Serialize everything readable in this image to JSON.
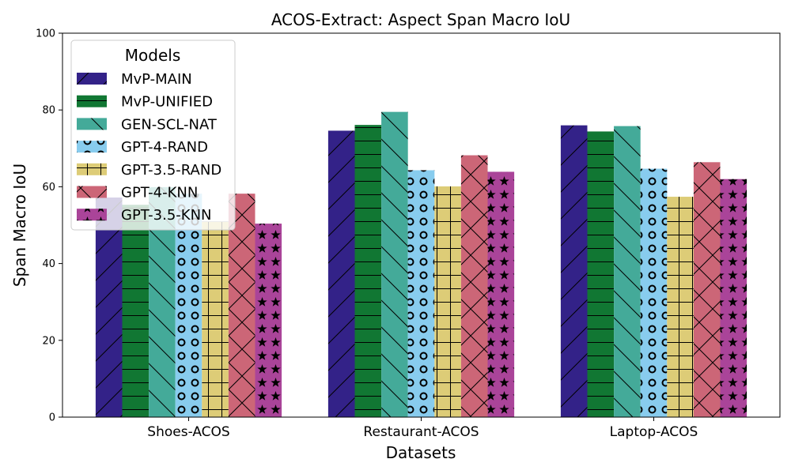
{
  "chart_data": {
    "type": "bar",
    "title": "ACOS-Extract: Aspect Span Macro IoU",
    "xlabel": "Datasets",
    "ylabel": "Span Macro IoU",
    "ylim": [
      0,
      100
    ],
    "yticks": [
      0,
      20,
      40,
      60,
      80,
      100
    ],
    "categories": [
      "Shoes-ACOS",
      "Restaurant-ACOS",
      "Laptop-ACOS"
    ],
    "legend": {
      "title": "Models",
      "placement": "top-left"
    },
    "grid": false,
    "series": [
      {
        "name": "MvP-MAIN",
        "color": "#332288",
        "hatch": "diagonal-forward",
        "values": [
          57.2,
          74.6,
          76.0
        ]
      },
      {
        "name": "MvP-UNIFIED",
        "color": "#117733",
        "hatch": "horizontal",
        "values": [
          55.3,
          76.1,
          74.4
        ]
      },
      {
        "name": "GEN-SCL-NAT",
        "color": "#44AA99",
        "hatch": "diagonal-back",
        "values": [
          59.9,
          79.5,
          75.8
        ]
      },
      {
        "name": "GPT-4-RAND",
        "color": "#88CCEE",
        "hatch": "circles",
        "values": [
          58.2,
          64.3,
          64.7
        ]
      },
      {
        "name": "GPT-3.5-RAND",
        "color": "#DDCC77",
        "hatch": "grid",
        "values": [
          50.9,
          60.1,
          57.4
        ]
      },
      {
        "name": "GPT-4-KNN",
        "color": "#CC6677",
        "hatch": "crosshatch-x",
        "values": [
          58.2,
          68.2,
          66.4
        ]
      },
      {
        "name": "GPT-3.5-KNN",
        "color": "#AA4499",
        "hatch": "stars",
        "values": [
          50.4,
          63.9,
          62.0
        ]
      }
    ]
  }
}
